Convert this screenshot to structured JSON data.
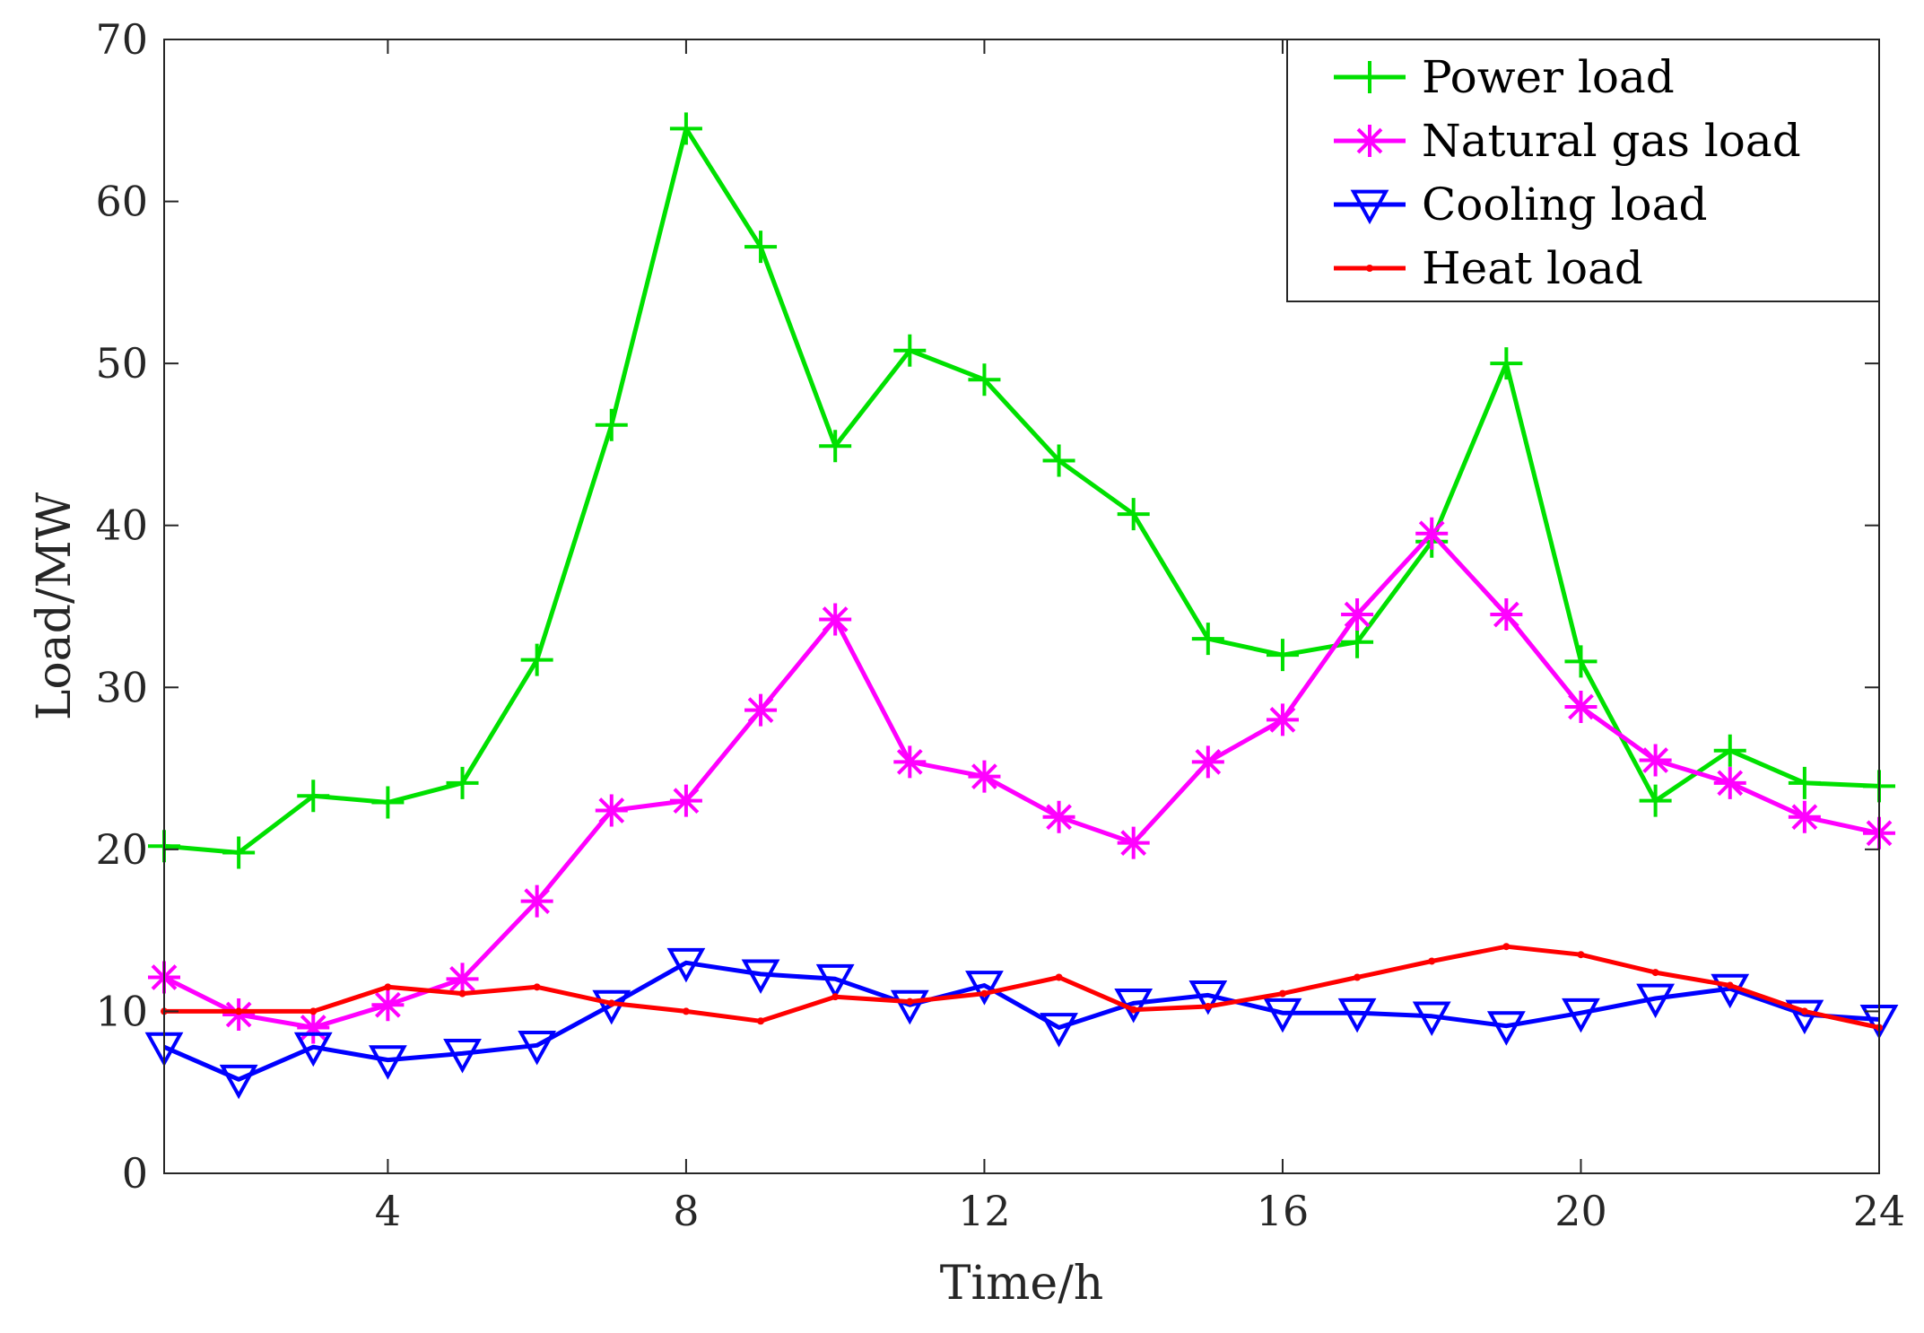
{
  "chart_data": {
    "type": "line",
    "title": "",
    "xlabel": "Time/h",
    "ylabel": "Load/MW",
    "xlim": [
      1,
      24
    ],
    "ylim": [
      0,
      70
    ],
    "xticks": [
      4,
      8,
      12,
      16,
      20,
      24
    ],
    "yticks": [
      0,
      10,
      20,
      30,
      40,
      50,
      60,
      70
    ],
    "grid": false,
    "legend_position": "top-right",
    "x": [
      1,
      2,
      3,
      4,
      5,
      6,
      7,
      8,
      9,
      10,
      11,
      12,
      13,
      14,
      15,
      16,
      17,
      18,
      19,
      20,
      21,
      22,
      23,
      24
    ],
    "series": [
      {
        "name": "Power load",
        "color": "#00e000",
        "marker": "plus",
        "values": [
          20.2,
          19.8,
          23.3,
          22.9,
          24.1,
          31.7,
          46.2,
          64.5,
          57.2,
          44.9,
          50.8,
          49.0,
          44.0,
          40.7,
          33.0,
          32.0,
          32.8,
          39.0,
          50.0,
          31.6,
          23.0,
          26.1,
          24.1,
          23.9
        ]
      },
      {
        "name": "Natural gas load",
        "color": "#ff00ff",
        "marker": "asterisk",
        "values": [
          12.1,
          9.8,
          9.0,
          10.4,
          12.0,
          16.8,
          22.4,
          23.0,
          28.6,
          34.2,
          25.4,
          24.5,
          22.0,
          20.4,
          25.4,
          28.0,
          34.5,
          39.5,
          34.5,
          28.8,
          25.5,
          24.1,
          22.0,
          21.0
        ]
      },
      {
        "name": "Cooling load",
        "color": "#0000ff",
        "marker": "triangle-down",
        "values": [
          7.8,
          5.8,
          7.8,
          7.0,
          7.4,
          7.9,
          10.4,
          13.0,
          12.3,
          12.0,
          10.4,
          11.6,
          9.0,
          10.5,
          11.0,
          9.9,
          9.9,
          9.7,
          9.1,
          9.9,
          10.8,
          11.4,
          9.8,
          9.5
        ]
      },
      {
        "name": "Heat load",
        "color": "#ff0000",
        "marker": "point",
        "values": [
          10.0,
          10.0,
          10.0,
          11.5,
          11.1,
          11.5,
          10.5,
          10.0,
          9.4,
          10.9,
          10.6,
          11.1,
          12.1,
          10.1,
          10.3,
          11.1,
          12.1,
          13.1,
          14.0,
          13.5,
          12.4,
          11.6,
          10.0,
          9.0
        ]
      }
    ]
  }
}
